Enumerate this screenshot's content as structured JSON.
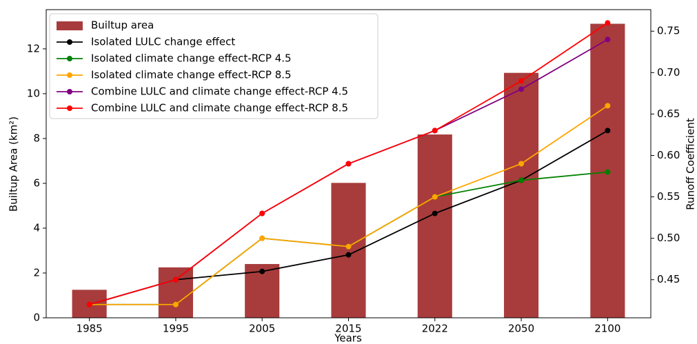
{
  "chart_data": {
    "type": "bar",
    "xlabel": "Years",
    "ylabel": "Builtup Area (km²)",
    "y2label": "Runoff Coefficient",
    "categories": [
      "1985",
      "1995",
      "2005",
      "2015",
      "2022",
      "2050",
      "2100"
    ],
    "bar_series": {
      "name": "Builtup area",
      "color": "#a83c3c",
      "values": [
        1.25,
        2.25,
        2.4,
        6.02,
        8.18,
        10.93,
        13.12
      ]
    },
    "series": [
      {
        "name": "Isolated LULC change effect",
        "color": "#000000",
        "axis": "y2",
        "values": [
          0.42,
          0.45,
          0.46,
          0.48,
          0.53,
          0.57,
          0.63
        ]
      },
      {
        "name": "Isolated climate change effect-RCP 4.5",
        "color": "#008000",
        "axis": "y2",
        "values": [
          0.42,
          0.42,
          0.5,
          0.49,
          0.55,
          0.57,
          0.58
        ]
      },
      {
        "name": "Isolated climate change effect-RCP 8.5",
        "color": "#ffa500",
        "axis": "y2",
        "values": [
          0.42,
          0.42,
          0.5,
          0.49,
          0.55,
          0.59,
          0.66
        ]
      },
      {
        "name": "Combine LULC and climate change effect-RCP 4.5",
        "color": "#800080",
        "axis": "y2",
        "values": [
          0.42,
          0.45,
          0.53,
          0.59,
          0.63,
          0.68,
          0.74
        ]
      },
      {
        "name": "Combine LULC and climate change effect-RCP 8.5",
        "color": "#ff0000",
        "axis": "y2",
        "values": [
          0.42,
          0.45,
          0.53,
          0.59,
          0.63,
          0.69,
          0.76
        ]
      }
    ],
    "ylim": [
      0,
      13.75
    ],
    "yticks": [
      0,
      2,
      4,
      6,
      8,
      10,
      12
    ],
    "y2lim": [
      0.404,
      0.776
    ],
    "y2ticks": [
      {
        "value": 0.45,
        "label": "0.45"
      },
      {
        "value": 0.5,
        "label": "0.50"
      },
      {
        "value": 0.55,
        "label": "0.55"
      },
      {
        "value": 0.6,
        "label": "0.60"
      },
      {
        "value": 0.65,
        "label": "0.65"
      },
      {
        "value": 0.7,
        "label": "0.70"
      },
      {
        "value": 0.75,
        "label": "0.75"
      }
    ],
    "legend": "upper left"
  }
}
